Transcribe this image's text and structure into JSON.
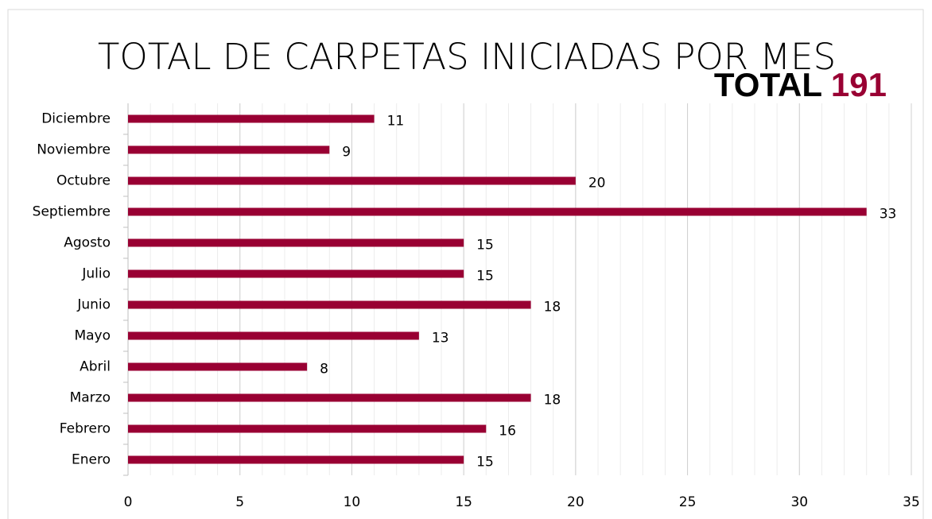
{
  "chart_data": {
    "type": "bar",
    "orientation": "horizontal",
    "title": "TOTAL DE CARPETAS INICIADAS POR MES",
    "total": {
      "label": "TOTAL",
      "value": 191
    },
    "categories": [
      "Enero",
      "Febrero",
      "Marzo",
      "Abril",
      "Mayo",
      "Junio",
      "Julio",
      "Agosto",
      "Septiembre",
      "Octubre",
      "Noviembre",
      "Diciembre"
    ],
    "values": [
      15,
      16,
      18,
      8,
      13,
      18,
      15,
      15,
      33,
      20,
      9,
      11
    ],
    "color": "#990033",
    "xlim": [
      0,
      35
    ],
    "xticks": [
      0,
      5,
      10,
      15,
      20,
      25,
      30,
      35
    ],
    "grid": true
  }
}
